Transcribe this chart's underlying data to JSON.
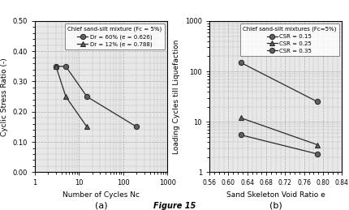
{
  "title_a": "Chlef sand-silt mixture (Fc = 5%)",
  "title_b": "Chlef sand-silt mixtures (Fc=5%)",
  "figure_label": "Figure 15",
  "plot_a": {
    "series": [
      {
        "label": "Dr = 60% (e = 0.626)",
        "marker": "o",
        "x": [
          3,
          5,
          15,
          200
        ],
        "y": [
          0.35,
          0.35,
          0.25,
          0.15
        ]
      },
      {
        "label": "Dr = 12% (e = 0.788)",
        "marker": "^",
        "x": [
          3,
          5,
          15
        ],
        "y": [
          0.35,
          0.25,
          0.15
        ]
      }
    ],
    "xlabel": "Number of Cycles Nc",
    "ylabel": "Cyclic Stress Ratio (-)",
    "xlim": [
      1,
      1000
    ],
    "ylim": [
      0.0,
      0.5
    ],
    "yticks": [
      0.0,
      0.1,
      0.2,
      0.3,
      0.4,
      0.5
    ],
    "subplot_label": "(a)"
  },
  "plot_b": {
    "series": [
      {
        "label": "CSR = 0.15",
        "marker": "o",
        "x": [
          0.626,
          0.788
        ],
        "y": [
          150,
          25
        ]
      },
      {
        "label": "CSR = 0.25",
        "marker": "^",
        "x": [
          0.626,
          0.788
        ],
        "y": [
          12,
          3.5
        ]
      },
      {
        "label": "CSR = 0.35",
        "marker": "o",
        "x": [
          0.626,
          0.788
        ],
        "y": [
          5.5,
          2.3
        ]
      }
    ],
    "xlabel": "Sand Skeleton Void Ratio e",
    "ylabel": "Loading Cycles till Liquefaction",
    "xlim": [
      0.56,
      0.84
    ],
    "ylim": [
      1,
      1000
    ],
    "xticks": [
      0.56,
      0.6,
      0.64,
      0.68,
      0.72,
      0.76,
      0.8,
      0.84
    ],
    "subplot_label": "(b)"
  },
  "line_color": "#2a2a2a",
  "marker_fill": "#606060",
  "grid_color": "#aaaaaa",
  "background": "#e8e8e8"
}
